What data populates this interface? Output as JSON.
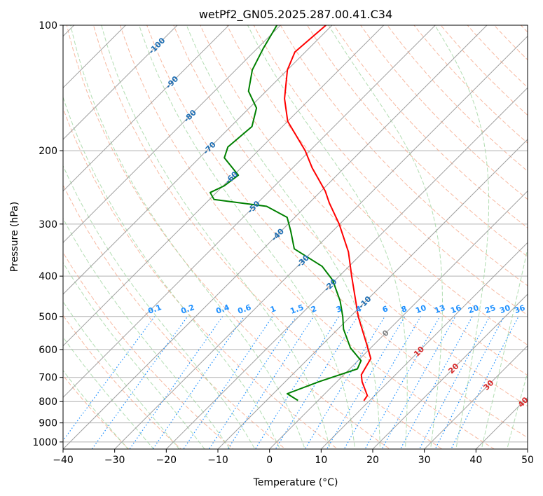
{
  "chart_data": {
    "type": "line",
    "subtype": "skew-t log-p",
    "title": "wetPf2_GN05.2025.287.00.41.C34",
    "xlabel": "Temperature (°C)",
    "ylabel": "Pressure (hPa)",
    "xlim": [
      -40,
      50
    ],
    "ylim": [
      1040,
      100
    ],
    "xticks": [
      "−40",
      "−30",
      "−20",
      "−10",
      "0",
      "10",
      "20",
      "30",
      "40",
      "50"
    ],
    "xtick_values": [
      -40,
      -30,
      -20,
      -10,
      0,
      10,
      20,
      30,
      40,
      50
    ],
    "yticks": [
      "100",
      "200",
      "300",
      "400",
      "500",
      "600",
      "700",
      "800",
      "900",
      "1000"
    ],
    "ytick_values": [
      100,
      200,
      300,
      400,
      500,
      600,
      700,
      800,
      900,
      1000
    ],
    "grid": true,
    "series": [
      {
        "name": "temperature",
        "color": "#ff0000",
        "pressure": [
          796,
          774,
          717,
          690,
          631,
          580,
          500,
          400,
          350,
          300,
          267,
          250,
          220,
          200,
          170,
          150,
          128,
          116,
          100
        ],
        "values": [
          8.9,
          8.6,
          4.9,
          3.4,
          2.1,
          -1.7,
          -8.5,
          -17.6,
          -22.9,
          -30.1,
          -36.1,
          -39.2,
          -46.2,
          -50.9,
          -60.0,
          -65.0,
          -70.0,
          -72.0,
          -71.2
        ]
      },
      {
        "name": "dewpoint",
        "color": "#008000",
        "pressure": [
          795,
          766,
          717,
          668,
          638,
          595,
          536,
          500,
          459,
          409,
          379,
          344,
          312,
          289,
          272,
          262,
          252,
          243,
          229,
          208,
          196,
          175,
          158,
          144,
          128,
          114,
          100
        ],
        "values": [
          -3.9,
          -7.3,
          -3.5,
          1.5,
          0.6,
          -3.9,
          -8.9,
          -11.5,
          -15,
          -20.5,
          -25.2,
          -34,
          -38.1,
          -41.5,
          -47.6,
          -59.1,
          -61.2,
          -59.8,
          -59.1,
          -65.2,
          -66.6,
          -65.9,
          -68.6,
          -73.4,
          -76.8,
          -78.8,
          -80.7
        ]
      }
    ],
    "isotherm_labels": [
      "-100",
      "-90",
      "-80",
      "-70",
      "-60",
      "-50",
      "-40",
      "-30",
      "-20",
      "-10",
      "0",
      "10",
      "20",
      "30",
      "40"
    ],
    "isotherm_label_values": [
      -100,
      -90,
      -80,
      -70,
      -60,
      -50,
      -40,
      -30,
      -20,
      -10,
      0,
      10,
      20,
      30,
      40
    ],
    "mixing_ratio_labels": [
      "0.1",
      "0.2",
      "0.4",
      "0.6",
      "1",
      "1.5",
      "2",
      "3",
      "4",
      "6",
      "8",
      "10",
      "13",
      "16",
      "20",
      "25",
      "30",
      "36"
    ],
    "mixing_ratio_values": [
      0.1,
      0.2,
      0.4,
      0.6,
      1,
      1.5,
      2,
      3,
      4,
      6,
      8,
      10,
      13,
      16,
      20,
      25,
      30,
      36
    ],
    "colors": {
      "isotherm": "#a0a0a0",
      "dry_adiabat": "#f5a78a",
      "moist_adiabat": "#9fd49f",
      "mixing_ratio": "#1e90ff",
      "cold_label": "#1f6fb4",
      "zero_label": "#808080",
      "warm_label": "#d62728"
    }
  }
}
